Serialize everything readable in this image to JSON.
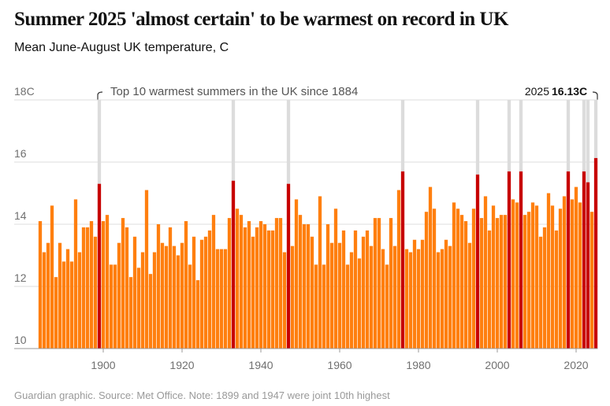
{
  "chart_data": {
    "type": "bar",
    "title": "Summer 2025 'almost certain' to be warmest on record in UK",
    "subtitle": "Mean June-August UK temperature, C",
    "source": "Guardian graphic. Source: Met Office. Note: 1899 and 1947 were joint 10th highest",
    "highlight_label": "Top 10 warmest summers in the UK since 1884",
    "annotation": {
      "year": "2025",
      "value": "16.13C"
    },
    "x_start": 1884,
    "values": [
      14.1,
      13.1,
      13.4,
      14.6,
      12.3,
      13.4,
      12.8,
      13.2,
      12.8,
      14.8,
      13.1,
      13.9,
      13.9,
      14.1,
      13.6,
      15.3,
      14.1,
      14.3,
      12.7,
      12.7,
      13.4,
      14.2,
      13.9,
      12.3,
      13.6,
      12.6,
      13.1,
      15.1,
      12.4,
      13.1,
      14.0,
      13.4,
      13.3,
      13.9,
      13.3,
      13.0,
      13.4,
      14.1,
      12.7,
      13.6,
      12.2,
      13.5,
      13.6,
      13.8,
      14.3,
      13.2,
      13.2,
      13.2,
      14.2,
      15.4,
      14.5,
      14.3,
      13.9,
      14.1,
      13.6,
      13.9,
      14.1,
      14.0,
      13.8,
      13.8,
      14.2,
      14.2,
      13.1,
      15.3,
      13.3,
      14.8,
      14.3,
      14.0,
      14.0,
      13.6,
      12.7,
      14.9,
      12.7,
      14.0,
      13.4,
      14.5,
      13.4,
      13.8,
      12.7,
      13.1,
      13.8,
      12.9,
      13.6,
      13.8,
      13.3,
      14.2,
      14.2,
      13.2,
      12.7,
      14.2,
      13.3,
      15.1,
      15.7,
      13.2,
      13.1,
      13.5,
      13.2,
      13.5,
      14.4,
      15.2,
      14.5,
      13.1,
      13.2,
      13.5,
      13.3,
      14.7,
      14.5,
      14.3,
      14.1,
      13.4,
      14.5,
      15.6,
      14.2,
      14.9,
      13.8,
      14.6,
      14.2,
      14.3,
      14.3,
      15.7,
      14.8,
      14.7,
      15.7,
      14.3,
      14.4,
      14.7,
      14.6,
      13.6,
      13.9,
      15.0,
      14.6,
      13.8,
      14.5,
      14.9,
      15.7,
      14.8,
      15.2,
      14.7,
      15.7,
      15.35,
      14.4,
      16.13
    ],
    "highlight_years": [
      1899,
      1933,
      1947,
      1976,
      1995,
      2003,
      2006,
      2018,
      2022,
      2023,
      2025
    ],
    "color": "#ff7f0f",
    "highlight_color": "#c70000",
    "highlight_band_color": "#dcdcdc",
    "xlim": [
      1883.5,
      2025.5
    ],
    "xticks": [
      1900,
      1920,
      1940,
      1960,
      1980,
      2000,
      2020
    ],
    "ylim": [
      10,
      18
    ],
    "yticks": [
      {
        "value": 18,
        "label": "18C"
      },
      16,
      14,
      12,
      10
    ],
    "grid": true
  }
}
